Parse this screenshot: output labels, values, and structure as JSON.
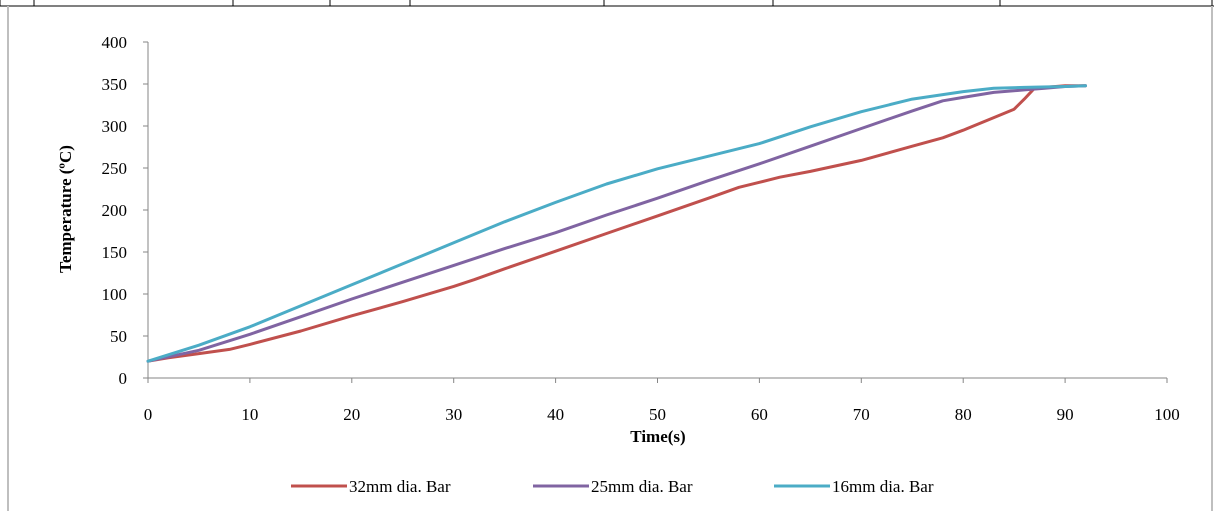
{
  "chart_data": {
    "type": "line",
    "title": "",
    "xlabel": "Time(s)",
    "ylabel": "Temperature (ºC)",
    "xlim": [
      0,
      100
    ],
    "ylim": [
      0,
      400
    ],
    "x_ticks": [
      "0",
      "10",
      "20",
      "30",
      "40",
      "50",
      "60",
      "70",
      "80",
      "90",
      "100"
    ],
    "y_ticks": [
      "0",
      "50",
      "100",
      "150",
      "200",
      "250",
      "300",
      "350",
      "400"
    ],
    "grid": false,
    "legend_position": "bottom",
    "series": [
      {
        "name": "32mm dia. Bar",
        "color": "#c0504d",
        "points": [
          [
            0,
            20
          ],
          [
            2,
            24
          ],
          [
            5,
            29
          ],
          [
            8,
            34
          ],
          [
            10,
            40
          ],
          [
            15,
            56
          ],
          [
            20,
            74
          ],
          [
            25,
            91
          ],
          [
            30,
            109
          ],
          [
            32,
            117
          ],
          [
            35,
            130
          ],
          [
            40,
            151
          ],
          [
            45,
            172
          ],
          [
            50,
            193
          ],
          [
            55,
            214
          ],
          [
            58,
            227
          ],
          [
            60,
            233
          ],
          [
            62,
            239
          ],
          [
            65,
            246
          ],
          [
            70,
            259
          ],
          [
            75,
            276
          ],
          [
            78,
            286
          ],
          [
            80,
            295
          ],
          [
            83,
            310
          ],
          [
            85,
            320
          ],
          [
            86,
            332
          ],
          [
            87,
            345
          ],
          [
            88,
            346
          ],
          [
            90,
            348
          ],
          [
            92,
            348
          ]
        ]
      },
      {
        "name": "25mm dia. Bar",
        "color": "#8064a2",
        "points": [
          [
            0,
            20
          ],
          [
            5,
            33
          ],
          [
            10,
            52
          ],
          [
            15,
            73
          ],
          [
            20,
            94
          ],
          [
            25,
            114
          ],
          [
            30,
            134
          ],
          [
            35,
            154
          ],
          [
            40,
            173
          ],
          [
            45,
            194
          ],
          [
            50,
            214
          ],
          [
            55,
            235
          ],
          [
            60,
            255
          ],
          [
            65,
            276
          ],
          [
            70,
            297
          ],
          [
            75,
            318
          ],
          [
            78,
            330
          ],
          [
            80,
            334
          ],
          [
            83,
            340
          ],
          [
            86,
            343
          ],
          [
            88,
            345
          ],
          [
            90,
            347
          ],
          [
            92,
            348
          ]
        ]
      },
      {
        "name": "16mm dia. Bar",
        "color": "#4bacc6",
        "points": [
          [
            0,
            20
          ],
          [
            5,
            39
          ],
          [
            10,
            61
          ],
          [
            15,
            86
          ],
          [
            20,
            111
          ],
          [
            25,
            136
          ],
          [
            30,
            161
          ],
          [
            35,
            186
          ],
          [
            40,
            209
          ],
          [
            45,
            231
          ],
          [
            50,
            249
          ],
          [
            55,
            264
          ],
          [
            60,
            279
          ],
          [
            65,
            299
          ],
          [
            70,
            317
          ],
          [
            75,
            332
          ],
          [
            80,
            341
          ],
          [
            83,
            345
          ],
          [
            86,
            346
          ],
          [
            90,
            347
          ],
          [
            92,
            348
          ]
        ]
      }
    ]
  }
}
